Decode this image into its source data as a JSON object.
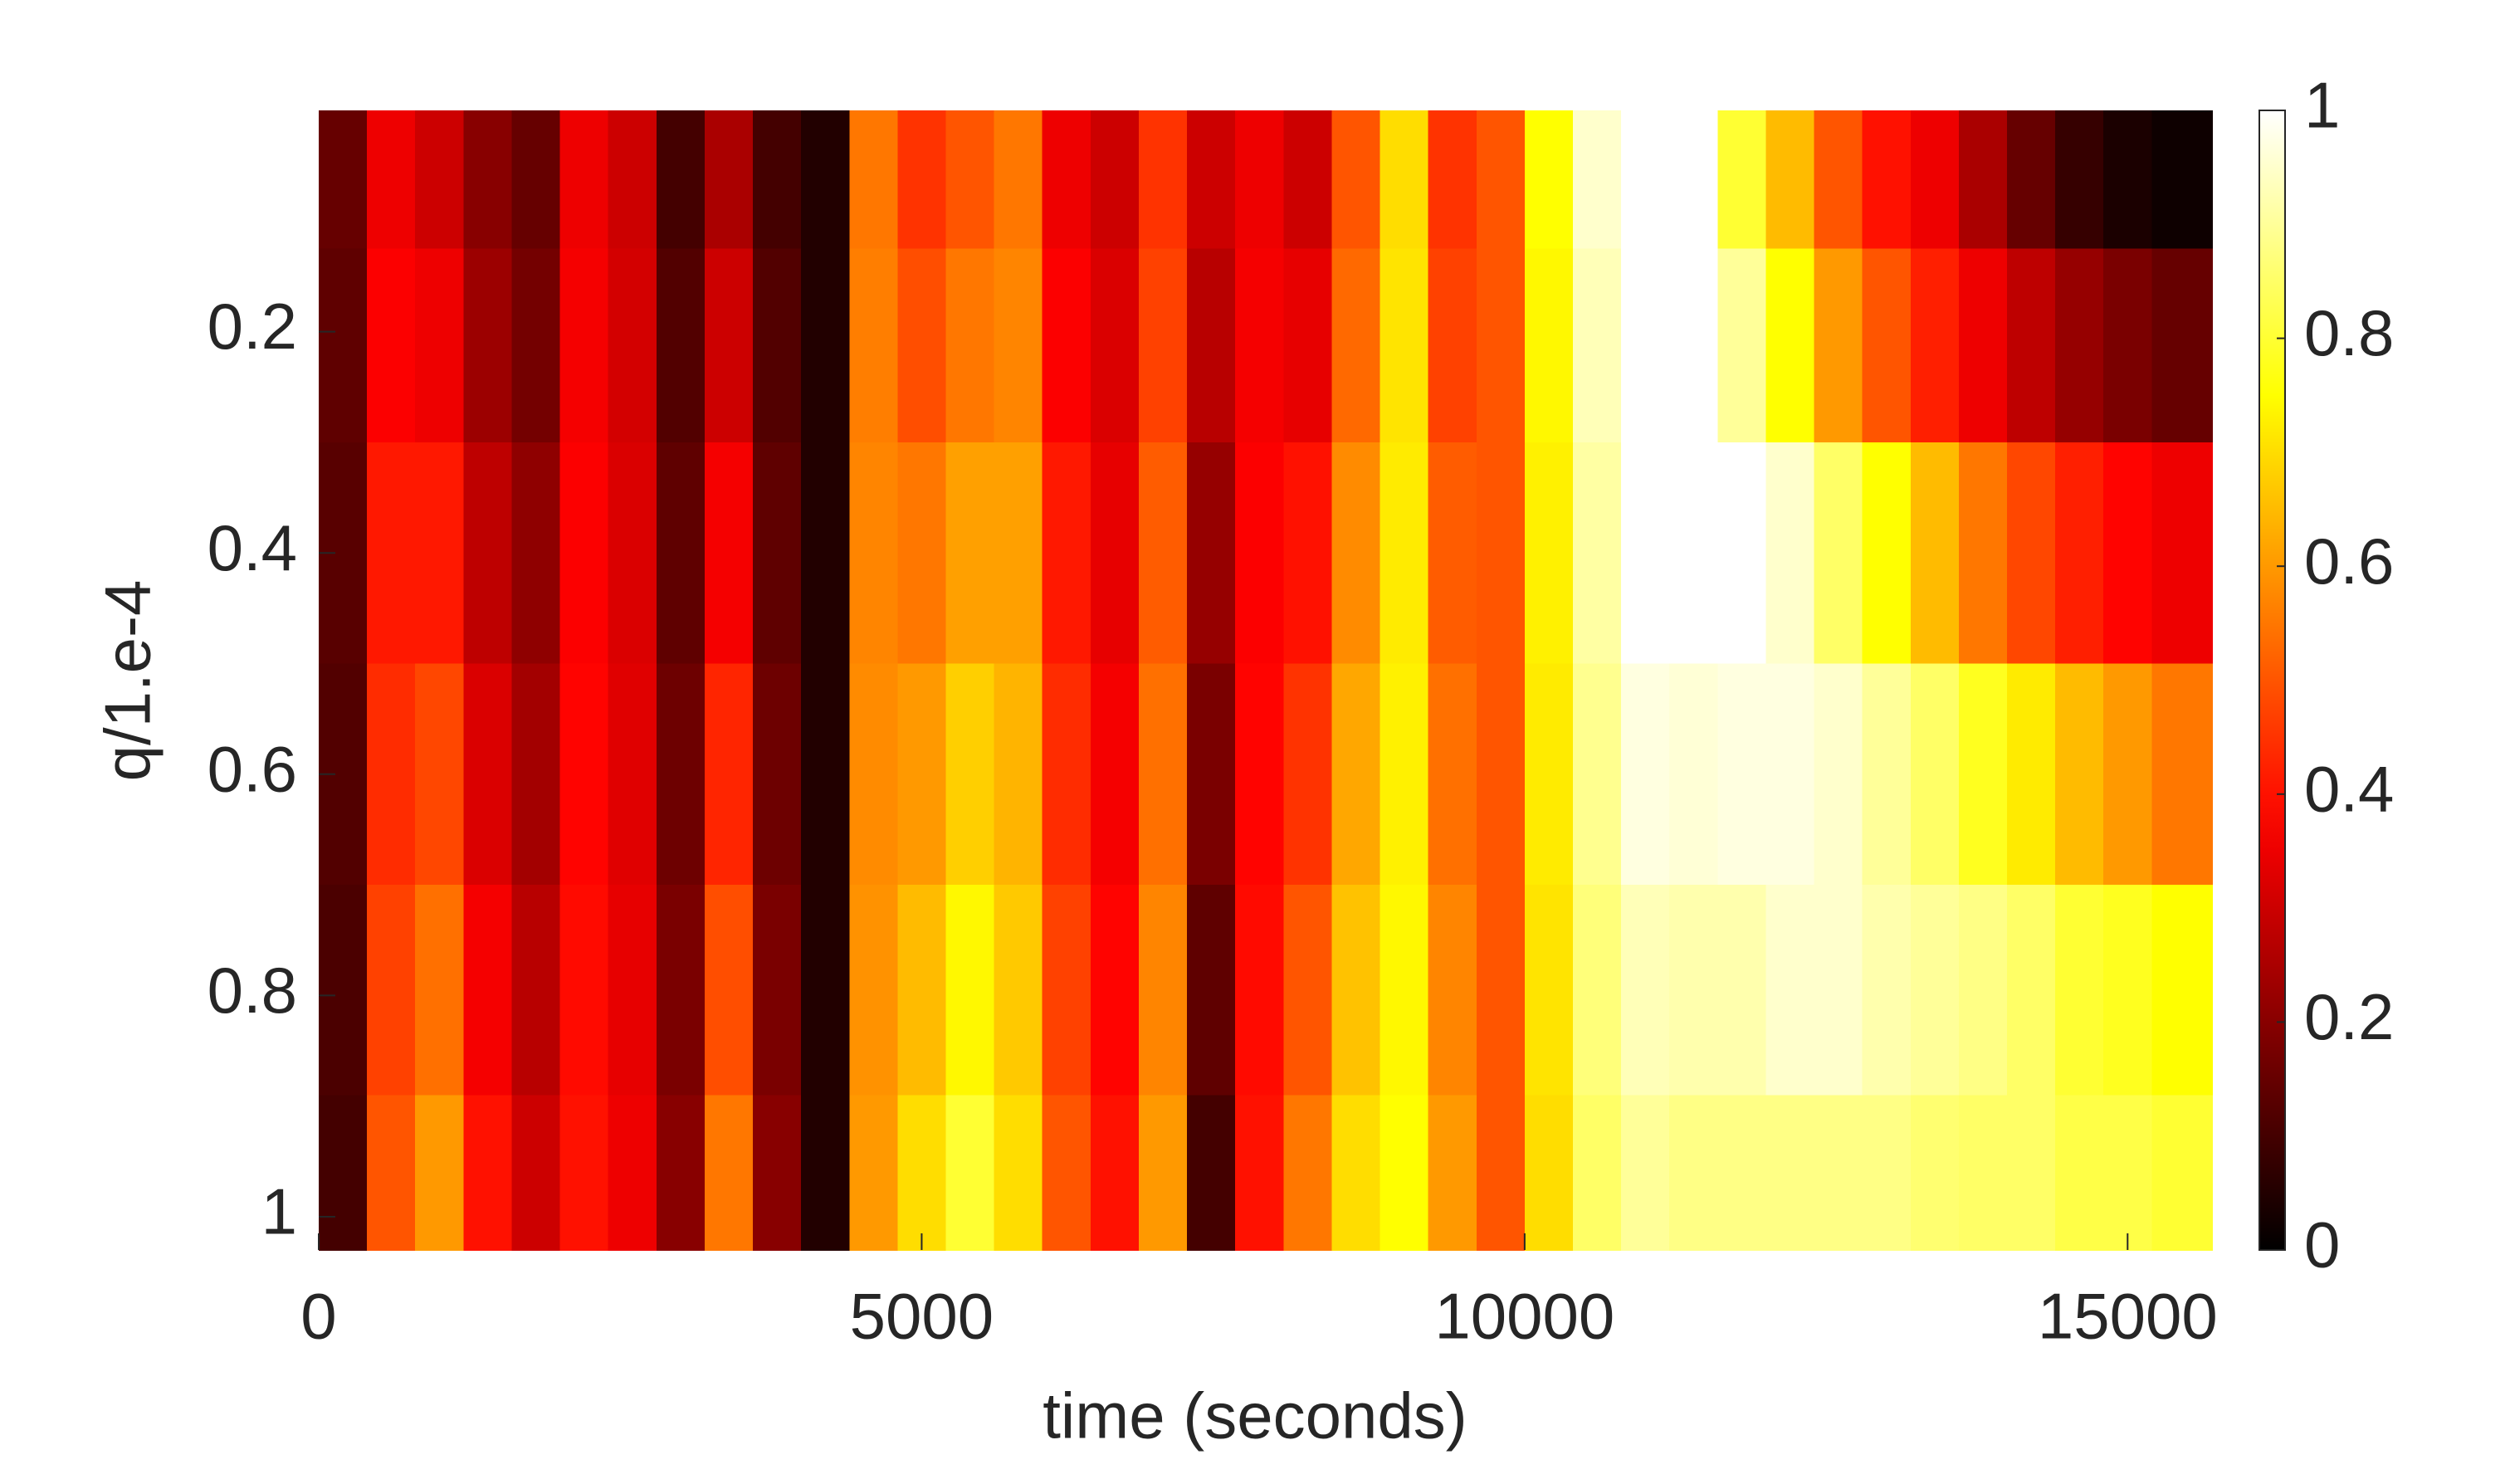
{
  "chart_data": {
    "type": "heatmap",
    "colormap": "hot",
    "clim": [
      0,
      1
    ],
    "xlabel": "time (seconds)",
    "ylabel": "q/1.e-4",
    "x": [
      200,
      600,
      1000,
      1400,
      1800,
      2200,
      2600,
      3000,
      3400,
      3800,
      4200,
      4600,
      5000,
      5400,
      5800,
      6200,
      6600,
      7000,
      7400,
      7800,
      8200,
      8600,
      9000,
      9400,
      9800,
      10200,
      10600,
      11000,
      11400,
      11800,
      12200,
      12600,
      13000,
      13400,
      13800,
      14200,
      14600,
      15000,
      15400
    ],
    "y": [
      0.05,
      0.2,
      0.4,
      0.6,
      0.8,
      0.98
    ],
    "values": [
      [
        0.15,
        0.35,
        0.3,
        0.2,
        0.15,
        0.35,
        0.3,
        0.1,
        0.25,
        0.1,
        0.05,
        0.55,
        0.45,
        0.5,
        0.55,
        0.35,
        0.3,
        0.45,
        0.3,
        0.35,
        0.3,
        0.5,
        0.7,
        0.45,
        0.5,
        0.75,
        0.95,
        1,
        1,
        0.8,
        0.65,
        0.5,
        0.4,
        0.35,
        0.25,
        0.15,
        0.08,
        0.04,
        0.02
      ],
      [
        0.14,
        0.37,
        0.35,
        0.23,
        0.17,
        0.36,
        0.31,
        0.12,
        0.3,
        0.12,
        0.05,
        0.56,
        0.49,
        0.55,
        0.57,
        0.37,
        0.32,
        0.47,
        0.27,
        0.36,
        0.34,
        0.53,
        0.71,
        0.47,
        0.5,
        0.74,
        0.93,
        1,
        1,
        0.9,
        0.75,
        0.6,
        0.5,
        0.42,
        0.35,
        0.28,
        0.22,
        0.18,
        0.15
      ],
      [
        0.13,
        0.41,
        0.41,
        0.28,
        0.21,
        0.37,
        0.32,
        0.14,
        0.36,
        0.14,
        0.05,
        0.57,
        0.55,
        0.61,
        0.61,
        0.41,
        0.34,
        0.51,
        0.22,
        0.37,
        0.4,
        0.58,
        0.72,
        0.51,
        0.5,
        0.73,
        0.91,
        1,
        1,
        1,
        0.95,
        0.85,
        0.75,
        0.65,
        0.55,
        0.48,
        0.42,
        0.38,
        0.35
      ],
      [
        0.12,
        0.44,
        0.48,
        0.32,
        0.24,
        0.38,
        0.33,
        0.16,
        0.43,
        0.16,
        0.05,
        0.58,
        0.6,
        0.68,
        0.64,
        0.44,
        0.36,
        0.54,
        0.18,
        0.38,
        0.45,
        0.62,
        0.73,
        0.54,
        0.5,
        0.72,
        0.89,
        0.97,
        0.96,
        0.97,
        0.97,
        0.95,
        0.9,
        0.85,
        0.78,
        0.72,
        0.65,
        0.6,
        0.55
      ],
      [
        0.11,
        0.47,
        0.54,
        0.36,
        0.27,
        0.39,
        0.34,
        0.18,
        0.49,
        0.18,
        0.05,
        0.59,
        0.65,
        0.74,
        0.67,
        0.47,
        0.38,
        0.57,
        0.14,
        0.39,
        0.5,
        0.66,
        0.74,
        0.57,
        0.5,
        0.71,
        0.87,
        0.93,
        0.92,
        0.92,
        0.95,
        0.95,
        0.92,
        0.9,
        0.88,
        0.85,
        0.8,
        0.78,
        0.75
      ],
      [
        0.1,
        0.5,
        0.6,
        0.4,
        0.3,
        0.4,
        0.35,
        0.2,
        0.55,
        0.2,
        0.05,
        0.6,
        0.7,
        0.8,
        0.7,
        0.5,
        0.4,
        0.6,
        0.1,
        0.4,
        0.55,
        0.7,
        0.75,
        0.6,
        0.5,
        0.7,
        0.85,
        0.9,
        0.88,
        0.88,
        0.88,
        0.88,
        0.88,
        0.86,
        0.85,
        0.85,
        0.82,
        0.82,
        0.8
      ]
    ],
    "xlim": [
      0,
      15700
    ],
    "xticks": [
      0,
      5000,
      10000,
      15000
    ],
    "ylim": [
      0,
      1.03
    ],
    "yticks": [
      0.2,
      0.4,
      0.6,
      0.8,
      1
    ],
    "y_reversed": true,
    "colorbar_ticks": [
      0,
      0.2,
      0.4,
      0.6,
      0.8,
      1
    ]
  }
}
